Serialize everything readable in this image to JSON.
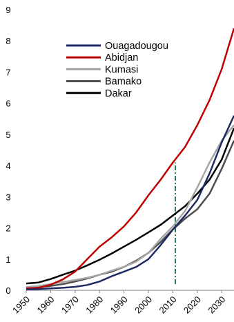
{
  "chart_data": {
    "type": "line",
    "title": "",
    "xlabel": "",
    "ylabel": "",
    "x": [
      1950,
      1955,
      1960,
      1965,
      1970,
      1975,
      1980,
      1985,
      1990,
      1995,
      2000,
      2005,
      2010,
      2015,
      2020,
      2025,
      2030,
      2035
    ],
    "xlim": [
      1950,
      2035
    ],
    "ylim": [
      0,
      9
    ],
    "xticks": [
      "1950",
      "1960",
      "1970",
      "1980",
      "1990",
      "2000",
      "2010",
      "2020",
      "2030"
    ],
    "yticks": [
      "0",
      "1",
      "2",
      "3",
      "4",
      "5",
      "6",
      "7",
      "8",
      "9"
    ],
    "grid": false,
    "legend_position": "top-left",
    "series": [
      {
        "name": "Ouagadougou",
        "color": "#1f2a63",
        "width": 2.5,
        "values": [
          0.03,
          0.04,
          0.06,
          0.08,
          0.11,
          0.17,
          0.28,
          0.45,
          0.6,
          0.75,
          1.0,
          1.45,
          1.95,
          2.4,
          2.9,
          3.75,
          4.75,
          5.6
        ]
      },
      {
        "name": "Abidjan",
        "color": "#c00000",
        "width": 2.5,
        "values": [
          0.06,
          0.08,
          0.18,
          0.35,
          0.6,
          1.0,
          1.4,
          1.7,
          2.05,
          2.5,
          3.05,
          3.55,
          4.1,
          4.6,
          5.3,
          6.1,
          7.1,
          8.4
        ]
      },
      {
        "name": "Kumasi",
        "color": "#a6a6a6",
        "width": 2.5,
        "values": [
          0.1,
          0.14,
          0.2,
          0.27,
          0.33,
          0.4,
          0.5,
          0.63,
          0.75,
          0.92,
          1.2,
          1.65,
          2.05,
          2.55,
          3.3,
          4.1,
          4.8,
          5.3
        ]
      },
      {
        "name": "Bamako",
        "color": "#4d4d4d",
        "width": 2.5,
        "values": [
          0.07,
          0.1,
          0.14,
          0.2,
          0.28,
          0.38,
          0.5,
          0.6,
          0.75,
          0.95,
          1.2,
          1.55,
          1.95,
          2.3,
          2.6,
          3.1,
          3.9,
          4.8
        ]
      },
      {
        "name": "Dakar",
        "color": "#000000",
        "width": 2.5,
        "values": [
          0.22,
          0.25,
          0.36,
          0.5,
          0.63,
          0.8,
          0.98,
          1.18,
          1.4,
          1.62,
          1.86,
          2.1,
          2.4,
          2.7,
          3.1,
          3.55,
          4.2,
          5.2
        ]
      }
    ],
    "annotations": [
      {
        "type": "vertical-line",
        "x": 2011,
        "y_from": 0.2,
        "y_to": 4.1,
        "color": "#1a6b45",
        "style": "dash-dot"
      }
    ]
  }
}
